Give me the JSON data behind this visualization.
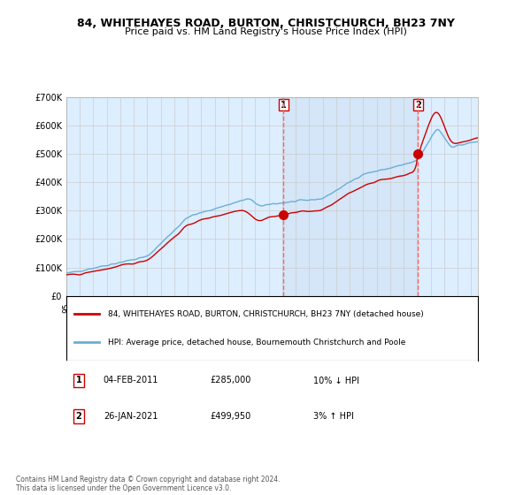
{
  "title": "84, WHITEHAYES ROAD, BURTON, CHRISTCHURCH, BH23 7NY",
  "subtitle": "Price paid vs. HM Land Registry's House Price Index (HPI)",
  "sale1_date": "04-FEB-2011",
  "sale1_price": 285000,
  "sale1_label": "10% ↓ HPI",
  "sale1_year": 2011.09,
  "sale2_date": "26-JAN-2021",
  "sale2_price": 499950,
  "sale2_label": "3% ↑ HPI",
  "sale2_year": 2021.07,
  "legend_line1": "84, WHITEHAYES ROAD, BURTON, CHRISTCHURCH, BH23 7NY (detached house)",
  "legend_line2": "HPI: Average price, detached house, Bournemouth Christchurch and Poole",
  "footnote": "Contains HM Land Registry data © Crown copyright and database right 2024.\nThis data is licensed under the Open Government Licence v3.0.",
  "hpi_color": "#6baed6",
  "price_color": "#cc0000",
  "background_color": "#ddeeff",
  "plot_bg": "#ffffff",
  "grid_color": "#cccccc",
  "vline_color": "#ff6666",
  "ylim": [
    0,
    700000
  ],
  "yticks": [
    0,
    100000,
    200000,
    300000,
    400000,
    500000,
    600000,
    700000
  ],
  "ytick_labels": [
    "£0",
    "£100K",
    "£200K",
    "£300K",
    "£400K",
    "£500K",
    "£600K",
    "£700K"
  ]
}
